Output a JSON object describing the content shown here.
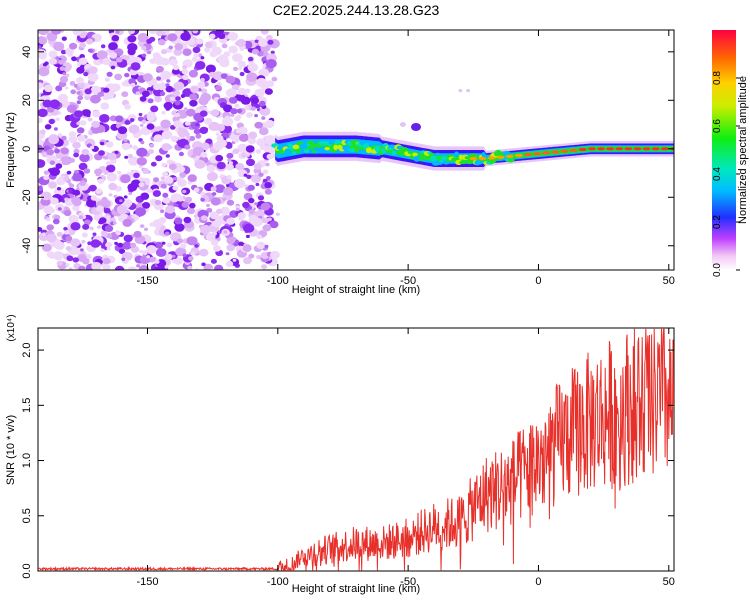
{
  "title": "C2E2.2025.244.13.28.G23",
  "chart_data": [
    {
      "type": "heatmap",
      "xlabel": "Height of straight line (km)",
      "ylabel": "Frequency (Hz)",
      "xlim": [
        -192,
        52
      ],
      "ylim": [
        -50,
        49
      ],
      "x_ticks": [
        -150,
        -100,
        -50,
        0,
        50
      ],
      "y_ticks": [
        -40,
        -20,
        0,
        20,
        40
      ],
      "noise_region_x": [
        -192,
        -101
      ],
      "signal_region_x": [
        -101,
        52
      ],
      "signal_center_hz": [
        {
          "x": -100,
          "y": -1
        },
        {
          "x": -90,
          "y": 1
        },
        {
          "x": -80,
          "y": 1
        },
        {
          "x": -70,
          "y": 1
        },
        {
          "x": -60,
          "y": 0
        },
        {
          "x": -50,
          "y": -2
        },
        {
          "x": -40,
          "y": -4
        },
        {
          "x": -30,
          "y": -4
        },
        {
          "x": -20,
          "y": -4
        },
        {
          "x": -10,
          "y": -3
        },
        {
          "x": 0,
          "y": -2
        },
        {
          "x": 10,
          "y": -1
        },
        {
          "x": 20,
          "y": 0
        },
        {
          "x": 35,
          "y": 0
        },
        {
          "x": 52,
          "y": 0
        }
      ],
      "colorbar": {
        "label": "Normalized spectral amplitude",
        "range": [
          0,
          1
        ],
        "ticks": [
          "0.0",
          "0.2",
          "0.4",
          "0.6",
          "0.8"
        ],
        "tick_values": [
          0.0,
          0.2,
          0.4,
          0.6,
          0.8
        ]
      }
    },
    {
      "type": "line",
      "xlabel": "Height of straight line (km)",
      "ylabel": "SNR (10 * v/v)",
      "y_scale_label": "(x10⁴)",
      "xlim": [
        -192,
        52
      ],
      "ylim": [
        0,
        2.2
      ],
      "x_ticks": [
        -150,
        -100,
        -50,
        0,
        50
      ],
      "y_ticks": [
        "0.0",
        "0.5",
        "1.0",
        "1.5",
        "2.0"
      ],
      "y_tick_values": [
        0.0,
        0.5,
        1.0,
        1.5,
        2.0
      ],
      "series": [
        {
          "name": "SNR",
          "color": "#e8302b",
          "trend": [
            {
              "x": -192,
              "y": 0.02
            },
            {
              "x": -100,
              "y": 0.02
            },
            {
              "x": -95,
              "y": 0.05
            },
            {
              "x": -90,
              "y": 0.15
            },
            {
              "x": -80,
              "y": 0.2
            },
            {
              "x": -70,
              "y": 0.25
            },
            {
              "x": -60,
              "y": 0.25
            },
            {
              "x": -50,
              "y": 0.3
            },
            {
              "x": -40,
              "y": 0.4
            },
            {
              "x": -30,
              "y": 0.45
            },
            {
              "x": -20,
              "y": 0.7
            },
            {
              "x": -10,
              "y": 0.8
            },
            {
              "x": 0,
              "y": 1.0
            },
            {
              "x": 10,
              "y": 1.2
            },
            {
              "x": 20,
              "y": 1.35
            },
            {
              "x": 30,
              "y": 1.45
            },
            {
              "x": 40,
              "y": 1.55
            },
            {
              "x": 50,
              "y": 1.55
            },
            {
              "x": 52,
              "y": 1.4
            }
          ]
        }
      ]
    }
  ]
}
